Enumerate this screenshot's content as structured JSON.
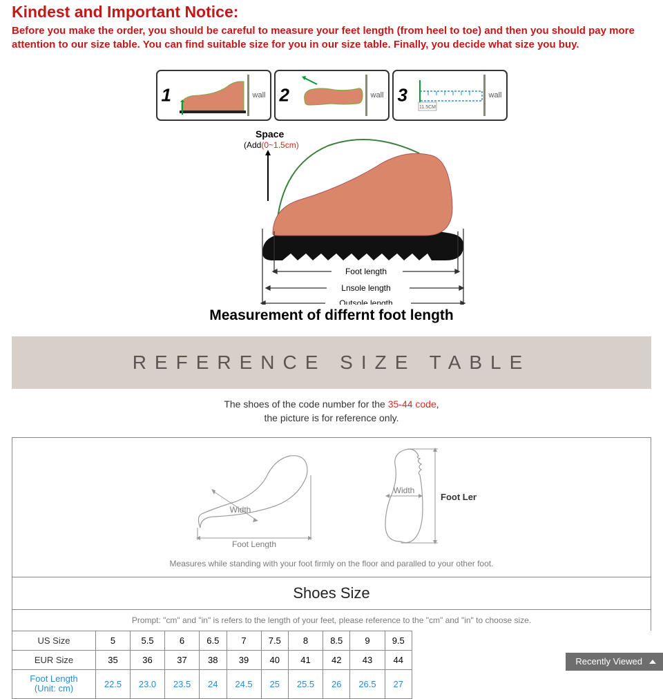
{
  "notice": {
    "title": "Kindest and Important Notice:",
    "title_color": "#c41818",
    "body": "Before you make the order, you should be careful to measure your feet length (from heel to toe) and then you should pay more attention to our size table. You can find suitable size for you in our size table. Finally, you decide what size you buy.",
    "body_color": "#c41818"
  },
  "steps": {
    "items": [
      {
        "num": "1",
        "wall": "wall",
        "kind": "side"
      },
      {
        "num": "2",
        "wall": "wall",
        "kind": "top"
      },
      {
        "num": "3",
        "wall": "wall",
        "kind": "ruler",
        "ruler_label": "11.5CM"
      }
    ],
    "border_color": "#333333"
  },
  "measurement": {
    "space_label": "Space",
    "space_sub_prefix": "(Add",
    "space_sub_value": "(0~1.5cm)",
    "space_value_color": "#e02020",
    "foot_label": "Foot length",
    "insole_label": "Lnsole length",
    "outsole_label": "Outsole length",
    "caption": "Measurement of differnt foot length",
    "foot_color": "#d9866a",
    "shoe_fill": "#111111",
    "outline_green": "#3c7f3c",
    "arrow_color": "#333333"
  },
  "reference": {
    "banner": "REFERENCE SIZE TABLE",
    "banner_bg": "#d8cfc9",
    "banner_color": "#5a5552",
    "sub_pre": "The shoes of the code number for the ",
    "code": "35-44 code",
    "sub_post": ",",
    "sub2": "the picture is for reference only."
  },
  "outline": {
    "width_label_side": "Width",
    "foot_length_side": "Foot Length",
    "width_label_top": "Width",
    "foot_length_top": "Foot Length",
    "note": "Measures while standing with your foot firmly on the floor and paralled to your other foot.",
    "line_color": "#9a9a9a",
    "text_color": "#7a7a7a"
  },
  "size_table": {
    "header": "Shoes Size",
    "prompt": "Prompt: \"cm\" and \"in\" is refers to the length of your feet, please reference to the \"cm\" and \"in\" to choose size.",
    "rows": [
      {
        "label": "US Size",
        "is_foot": false,
        "values": [
          "5",
          "5.5",
          "6",
          "6.5",
          "7",
          "7.5",
          "8",
          "8.5",
          "9",
          "9.5"
        ]
      },
      {
        "label": "EUR Size",
        "is_foot": false,
        "values": [
          "35",
          "36",
          "37",
          "38",
          "39",
          "40",
          "41",
          "42",
          "43",
          "44"
        ]
      },
      {
        "label_l1": "Foot Length",
        "label_l2": "(Unit: cm)",
        "is_foot": true,
        "values": [
          "22.5",
          "23.0",
          "23.5",
          "24",
          "24.5",
          "25",
          "25.5",
          "26",
          "26.5",
          "27"
        ]
      }
    ],
    "border_color": "#888888",
    "foot_color": "#2a8bd6"
  },
  "recently": {
    "label": "Recently Viewed",
    "bg": "#6e6e6e"
  }
}
